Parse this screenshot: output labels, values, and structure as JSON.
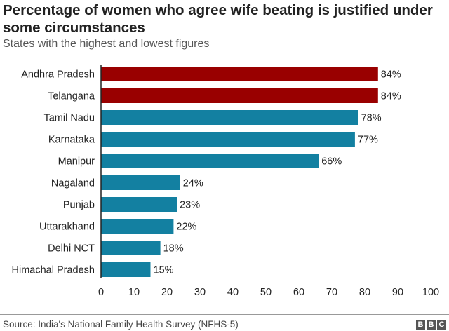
{
  "chart_data": {
    "type": "bar",
    "orientation": "horizontal",
    "title": "Percentage of women who agree wife beating is justified under some circumstances",
    "subtitle": "States with the highest and lowest figures",
    "categories": [
      "Andhra Pradesh",
      "Telangana",
      "Tamil Nadu",
      "Karnataka",
      "Manipur",
      "Nagaland",
      "Punjab",
      "Uttarakhand",
      "Delhi NCT",
      "Himachal Pradesh"
    ],
    "values": [
      84,
      84,
      78,
      77,
      66,
      24,
      23,
      22,
      18,
      15
    ],
    "value_labels": [
      "84%",
      "84%",
      "78%",
      "77%",
      "66%",
      "24%",
      "23%",
      "22%",
      "18%",
      "15%"
    ],
    "bar_colors": [
      "#990000",
      "#990000",
      "#1380A1",
      "#1380A1",
      "#1380A1",
      "#1380A1",
      "#1380A1",
      "#1380A1",
      "#1380A1",
      "#1380A1"
    ],
    "xlim": [
      0,
      100
    ],
    "xticks": [
      0,
      10,
      20,
      30,
      40,
      50,
      60,
      70,
      80,
      90,
      100
    ],
    "grid": false,
    "xlabel": "",
    "ylabel": ""
  },
  "footer": {
    "source": "Source: India's National Family Health Survey (NFHS-5)",
    "logo": [
      "B",
      "B",
      "C"
    ]
  }
}
